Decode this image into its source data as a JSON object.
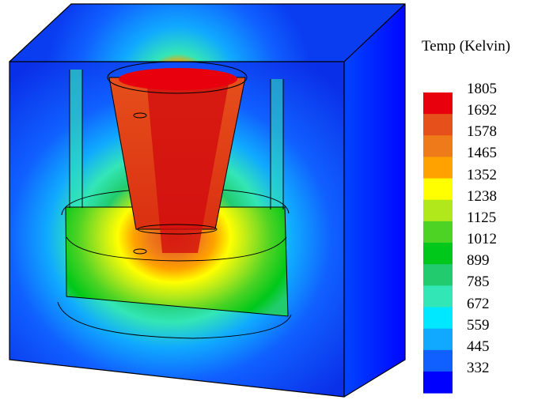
{
  "legend": {
    "title": "Temp (Kelvin)",
    "entries": [
      {
        "label": "1805",
        "color": "#e8000c"
      },
      {
        "label": "1692",
        "color": "#e6501b"
      },
      {
        "label": "1578",
        "color": "#ee7a1a"
      },
      {
        "label": "1465",
        "color": "#ffa200"
      },
      {
        "label": "1352",
        "color": "#ffff00"
      },
      {
        "label": "1238",
        "color": "#b0e81c"
      },
      {
        "label": "1125",
        "color": "#4cd324"
      },
      {
        "label": "1012",
        "color": "#00c81a"
      },
      {
        "label": "899",
        "color": "#22cc6e"
      },
      {
        "label": "785",
        "color": "#33e6b6"
      },
      {
        "label": "672",
        "color": "#00e8ff"
      },
      {
        "label": "559",
        "color": "#10a9ff"
      },
      {
        "label": "445",
        "color": "#1060ff"
      },
      {
        "label": "332",
        "color": "#0000ff"
      }
    ]
  }
}
